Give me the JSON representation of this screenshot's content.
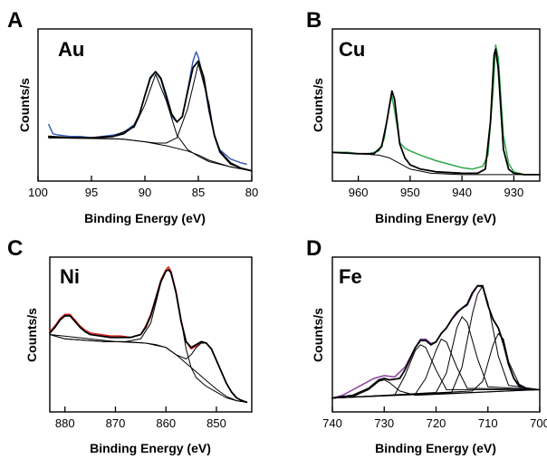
{
  "chart_data": [
    {
      "type": "line",
      "panel_label": "A",
      "element": "Au",
      "xlabel": "Binding Energy (eV)",
      "ylabel": "Counts/s",
      "xlim": [
        100,
        80
      ],
      "ylim": [
        0,
        1
      ],
      "xticks": [
        100,
        95,
        90,
        85,
        80
      ],
      "data_color": "#3a5fb8",
      "fit_color": "#000000",
      "series": [
        {
          "role": "data",
          "x": [
            99,
            98.6,
            98,
            97,
            96,
            95,
            94,
            93,
            92,
            91,
            90.5,
            90,
            89.5,
            89,
            88.5,
            88,
            87.5,
            87,
            86.5,
            86,
            85.5,
            85.2,
            85,
            84.5,
            84,
            83.5,
            83,
            82,
            81,
            80.5
          ],
          "y": [
            0.4,
            0.33,
            0.32,
            0.31,
            0.31,
            0.3,
            0.31,
            0.32,
            0.34,
            0.4,
            0.48,
            0.62,
            0.76,
            0.8,
            0.74,
            0.6,
            0.46,
            0.42,
            0.46,
            0.66,
            0.88,
            0.95,
            0.91,
            0.74,
            0.5,
            0.32,
            0.21,
            0.14,
            0.11,
            0.1
          ]
        },
        {
          "role": "envelope",
          "x": [
            99,
            97,
            95,
            93,
            92,
            91,
            90.5,
            90,
            89.5,
            89,
            88.5,
            88,
            87.5,
            87,
            86.5,
            86,
            85.5,
            85,
            84.5,
            84,
            83.5,
            83,
            82,
            81,
            80
          ],
          "y": [
            0.31,
            0.3,
            0.3,
            0.31,
            0.33,
            0.39,
            0.48,
            0.62,
            0.75,
            0.8,
            0.75,
            0.62,
            0.48,
            0.42,
            0.46,
            0.65,
            0.83,
            0.88,
            0.76,
            0.52,
            0.32,
            0.2,
            0.11,
            0.07,
            0.05
          ]
        },
        {
          "role": "background",
          "x": [
            99,
            95,
            92,
            90,
            88,
            86,
            85,
            84,
            82,
            80
          ],
          "y": [
            0.3,
            0.3,
            0.29,
            0.27,
            0.24,
            0.2,
            0.17,
            0.13,
            0.08,
            0.05
          ]
        },
        {
          "role": "component",
          "x": [
            99,
            95,
            93,
            91,
            90,
            89,
            88,
            87,
            86,
            85,
            84,
            82,
            80
          ],
          "y": [
            0.3,
            0.3,
            0.31,
            0.38,
            0.55,
            0.78,
            0.58,
            0.32,
            0.21,
            0.16,
            0.12,
            0.08,
            0.05
          ]
        },
        {
          "role": "component",
          "x": [
            99,
            92,
            89,
            88,
            87,
            86,
            85,
            84,
            83.5,
            83,
            82,
            81,
            80
          ],
          "y": [
            0.3,
            0.29,
            0.26,
            0.26,
            0.3,
            0.52,
            0.86,
            0.56,
            0.31,
            0.19,
            0.1,
            0.07,
            0.05
          ]
        }
      ]
    },
    {
      "type": "line",
      "panel_label": "B",
      "element": "Cu",
      "xlabel": "Binding Energy (eV)",
      "ylabel": "Counts/s",
      "xlim": [
        965,
        925
      ],
      "ylim": [
        0,
        1
      ],
      "xticks": [
        960,
        950,
        940,
        930
      ],
      "data_color": "#2ea84a",
      "fit_color": "#000000",
      "series": [
        {
          "role": "data",
          "x": [
            965,
            962,
            960,
            958,
            956,
            955,
            954,
            953.5,
            953,
            952,
            951,
            950,
            948,
            945,
            942,
            940,
            938,
            936,
            935,
            934,
            933.5,
            933,
            932,
            931,
            930,
            928,
            925
          ],
          "y": [
            0.18,
            0.18,
            0.17,
            0.17,
            0.19,
            0.28,
            0.52,
            0.58,
            0.48,
            0.25,
            0.21,
            0.19,
            0.16,
            0.12,
            0.09,
            0.07,
            0.06,
            0.08,
            0.16,
            0.62,
            0.95,
            0.86,
            0.3,
            0.1,
            0.04,
            0.02,
            0.02
          ]
        },
        {
          "role": "envelope",
          "x": [
            965,
            960,
            957,
            955.5,
            954.5,
            953.5,
            953,
            952,
            951,
            950,
            948,
            945,
            940,
            937,
            935.5,
            934.5,
            933.8,
            933.5,
            933,
            932,
            931,
            930,
            928,
            925
          ],
          "y": [
            0.18,
            0.17,
            0.17,
            0.22,
            0.4,
            0.62,
            0.56,
            0.24,
            0.14,
            0.09,
            0.06,
            0.04,
            0.03,
            0.03,
            0.06,
            0.4,
            0.88,
            0.92,
            0.78,
            0.2,
            0.06,
            0.03,
            0.02,
            0.02
          ]
        },
        {
          "role": "background",
          "x": [
            965,
            960,
            956,
            954,
            952,
            950,
            946,
            940,
            930,
            925
          ],
          "y": [
            0.18,
            0.17,
            0.16,
            0.14,
            0.1,
            0.06,
            0.03,
            0.02,
            0.02,
            0.02
          ]
        }
      ]
    },
    {
      "type": "line",
      "panel_label": "C",
      "element": "Ni",
      "xlabel": "Binding Energy (eV)",
      "ylabel": "Counts/s",
      "xlim": [
        883,
        843
      ],
      "ylim": [
        0,
        1
      ],
      "xticks": [
        880,
        870,
        860,
        850
      ],
      "data_color": "#e0201c",
      "fit_color": "#000000",
      "series": [
        {
          "role": "data",
          "x": [
            883,
            882,
            881,
            880,
            879,
            878,
            877,
            876,
            875,
            873,
            871,
            869,
            867,
            865,
            864,
            863,
            862,
            861,
            860,
            859.5,
            859,
            858,
            857,
            856,
            855,
            854,
            853,
            852,
            851,
            850,
            849,
            848,
            847,
            846,
            845,
            844
          ],
          "y": [
            0.52,
            0.56,
            0.61,
            0.64,
            0.64,
            0.6,
            0.56,
            0.53,
            0.51,
            0.5,
            0.49,
            0.49,
            0.48,
            0.5,
            0.56,
            0.64,
            0.76,
            0.88,
            0.95,
            0.97,
            0.94,
            0.8,
            0.6,
            0.45,
            0.4,
            0.42,
            0.45,
            0.44,
            0.4,
            0.32,
            0.24,
            0.16,
            0.1,
            0.06,
            0.04,
            0.03
          ]
        },
        {
          "role": "envelope",
          "x": [
            883,
            882,
            881,
            880,
            879,
            878,
            877,
            876,
            875,
            873,
            871,
            869,
            867,
            865,
            864,
            863,
            862,
            861,
            860,
            859.5,
            859,
            858,
            857,
            856,
            855,
            854,
            853,
            852,
            851,
            850,
            849,
            848,
            847,
            846,
            845,
            844
          ],
          "y": [
            0.51,
            0.55,
            0.6,
            0.63,
            0.63,
            0.59,
            0.55,
            0.52,
            0.5,
            0.49,
            0.48,
            0.48,
            0.48,
            0.5,
            0.55,
            0.63,
            0.75,
            0.87,
            0.94,
            0.95,
            0.93,
            0.79,
            0.59,
            0.45,
            0.41,
            0.43,
            0.45,
            0.44,
            0.4,
            0.32,
            0.24,
            0.16,
            0.1,
            0.06,
            0.04,
            0.03
          ]
        },
        {
          "role": "background",
          "x": [
            883,
            880,
            876,
            872,
            868,
            864,
            862,
            860,
            858,
            856,
            854,
            852,
            850,
            848,
            846,
            844
          ],
          "y": [
            0.5,
            0.47,
            0.46,
            0.45,
            0.45,
            0.44,
            0.43,
            0.41,
            0.36,
            0.3,
            0.24,
            0.18,
            0.12,
            0.07,
            0.04,
            0.03
          ]
        },
        {
          "role": "component",
          "x": [
            883,
            880,
            876,
            872,
            868,
            865,
            863,
            862,
            861,
            860,
            859.5,
            859,
            858,
            857,
            856,
            855,
            854,
            852,
            850,
            848,
            846,
            844
          ],
          "y": [
            0.5,
            0.47,
            0.46,
            0.45,
            0.45,
            0.47,
            0.58,
            0.72,
            0.86,
            0.94,
            0.95,
            0.93,
            0.8,
            0.6,
            0.4,
            0.27,
            0.2,
            0.14,
            0.1,
            0.06,
            0.04,
            0.03
          ]
        },
        {
          "role": "component",
          "x": [
            883,
            870,
            864,
            860,
            858,
            856,
            855,
            854,
            853,
            852,
            851,
            850,
            849,
            848,
            847,
            846,
            844
          ],
          "y": [
            0.5,
            0.45,
            0.44,
            0.41,
            0.36,
            0.33,
            0.36,
            0.41,
            0.44,
            0.44,
            0.4,
            0.32,
            0.24,
            0.16,
            0.1,
            0.06,
            0.03
          ]
        }
      ]
    },
    {
      "type": "line",
      "panel_label": "D",
      "element": "Fe",
      "xlabel": "Binding Energy (eV)",
      "ylabel": "Counts/s",
      "xlim": [
        740,
        700
      ],
      "ylim": [
        0,
        1
      ],
      "xticks": [
        740,
        730,
        720,
        710,
        700
      ],
      "data_color": "#8a3fa0",
      "fit_color": "#000000",
      "series": [
        {
          "role": "data",
          "x": [
            740,
            738,
            736,
            734,
            732,
            730,
            728,
            726,
            724,
            723,
            722,
            721,
            720,
            719,
            718,
            717,
            716,
            715,
            714,
            713,
            712,
            711,
            710,
            709,
            708,
            707,
            706,
            705,
            704,
            703,
            702
          ],
          "y": [
            0.06,
            0.08,
            0.12,
            0.16,
            0.2,
            0.22,
            0.21,
            0.28,
            0.42,
            0.48,
            0.48,
            0.45,
            0.46,
            0.52,
            0.56,
            0.62,
            0.66,
            0.7,
            0.72,
            0.8,
            0.86,
            0.85,
            0.72,
            0.62,
            0.56,
            0.44,
            0.3,
            0.2,
            0.14,
            0.12,
            0.12
          ]
        },
        {
          "role": "background",
          "x": [
            740,
            700
          ],
          "y": [
            0.06,
            0.12
          ]
        },
        {
          "role": "component",
          "x": [
            740,
            736,
            733,
            731,
            730,
            729,
            727,
            724,
            700
          ],
          "y": [
            0.06,
            0.07,
            0.12,
            0.18,
            0.19,
            0.17,
            0.11,
            0.08,
            0.12
          ]
        },
        {
          "role": "component",
          "x": [
            740,
            728,
            726,
            724,
            723,
            722,
            720,
            718,
            700
          ],
          "y": [
            0.06,
            0.08,
            0.22,
            0.4,
            0.44,
            0.42,
            0.26,
            0.12,
            0.12
          ]
        },
        {
          "role": "component",
          "x": [
            740,
            724,
            722,
            720,
            719,
            718,
            716,
            714,
            700
          ],
          "y": [
            0.06,
            0.09,
            0.2,
            0.4,
            0.48,
            0.46,
            0.28,
            0.13,
            0.12
          ]
        },
        {
          "role": "component",
          "x": [
            740,
            720,
            718,
            716,
            715,
            714,
            712,
            710,
            700
          ],
          "y": [
            0.06,
            0.1,
            0.24,
            0.56,
            0.64,
            0.6,
            0.34,
            0.14,
            0.12
          ]
        },
        {
          "role": "component",
          "x": [
            740,
            717,
            715,
            713,
            712,
            711,
            710,
            708,
            706,
            700
          ],
          "y": [
            0.06,
            0.1,
            0.28,
            0.66,
            0.8,
            0.86,
            0.74,
            0.36,
            0.15,
            0.12
          ]
        },
        {
          "role": "component",
          "x": [
            740,
            713,
            711,
            709,
            708,
            707,
            706,
            704,
            702,
            700
          ],
          "y": [
            0.06,
            0.11,
            0.18,
            0.44,
            0.52,
            0.48,
            0.32,
            0.16,
            0.12,
            0.12
          ]
        },
        {
          "role": "envelope",
          "x": [
            740,
            736,
            733,
            731,
            730,
            729,
            727,
            726,
            724,
            723,
            722,
            721,
            720,
            719,
            718,
            717,
            716,
            715,
            714,
            713,
            712,
            711,
            710,
            709,
            708,
            707,
            706,
            705,
            704,
            702,
            700
          ],
          "y": [
            0.06,
            0.08,
            0.13,
            0.19,
            0.2,
            0.19,
            0.2,
            0.26,
            0.42,
            0.47,
            0.47,
            0.44,
            0.46,
            0.52,
            0.56,
            0.62,
            0.67,
            0.7,
            0.73,
            0.81,
            0.86,
            0.86,
            0.72,
            0.62,
            0.56,
            0.45,
            0.3,
            0.2,
            0.15,
            0.12,
            0.12
          ]
        }
      ]
    }
  ]
}
